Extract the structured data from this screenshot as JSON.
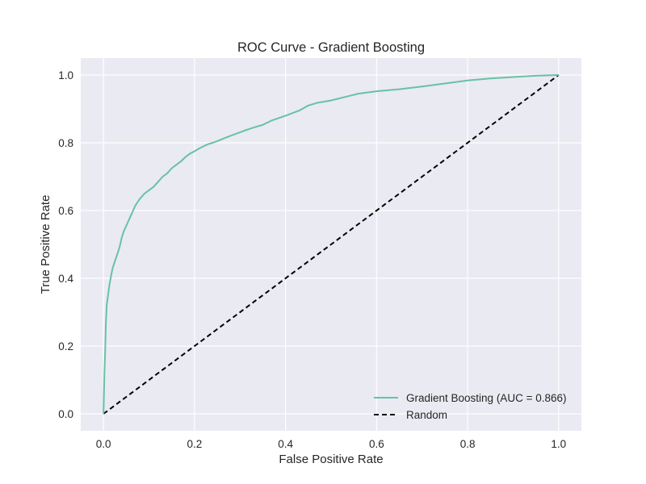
{
  "chart_data": {
    "type": "line",
    "title": "ROC Curve - Gradient Boosting",
    "xlabel": "False Positive Rate",
    "ylabel": "True Positive Rate",
    "xlim": [
      -0.05,
      1.05
    ],
    "ylim": [
      -0.05,
      1.05
    ],
    "x_ticks": [
      0.0,
      0.2,
      0.4,
      0.6,
      0.8,
      1.0
    ],
    "y_ticks": [
      0.0,
      0.2,
      0.4,
      0.6,
      0.8,
      1.0
    ],
    "x_tick_labels": [
      "0.0",
      "0.2",
      "0.4",
      "0.6",
      "0.8",
      "1.0"
    ],
    "y_tick_labels": [
      "0.0",
      "0.2",
      "0.4",
      "0.6",
      "0.8",
      "1.0"
    ],
    "grid": true,
    "legend_position": "lower-right",
    "background_color": "#eaeaf2",
    "series": [
      {
        "name": "Gradient Boosting (AUC = 0.866)",
        "color": "#66c2a5",
        "style": "solid",
        "x": [
          0.0,
          0.002,
          0.004,
          0.005,
          0.007,
          0.01,
          0.013,
          0.017,
          0.02,
          0.025,
          0.03,
          0.035,
          0.04,
          0.045,
          0.05,
          0.055,
          0.06,
          0.065,
          0.07,
          0.075,
          0.08,
          0.09,
          0.1,
          0.11,
          0.12,
          0.13,
          0.14,
          0.15,
          0.16,
          0.17,
          0.18,
          0.19,
          0.2,
          0.21,
          0.22,
          0.23,
          0.24,
          0.25,
          0.27,
          0.29,
          0.31,
          0.33,
          0.35,
          0.37,
          0.4,
          0.43,
          0.45,
          0.47,
          0.5,
          0.53,
          0.56,
          0.6,
          0.65,
          0.7,
          0.75,
          0.8,
          0.85,
          0.9,
          0.95,
          1.0
        ],
        "y": [
          0.0,
          0.12,
          0.2,
          0.26,
          0.32,
          0.35,
          0.38,
          0.41,
          0.43,
          0.45,
          0.47,
          0.49,
          0.52,
          0.54,
          0.555,
          0.57,
          0.585,
          0.6,
          0.615,
          0.625,
          0.635,
          0.65,
          0.66,
          0.67,
          0.685,
          0.7,
          0.71,
          0.725,
          0.735,
          0.745,
          0.758,
          0.768,
          0.775,
          0.783,
          0.79,
          0.796,
          0.8,
          0.805,
          0.816,
          0.826,
          0.836,
          0.845,
          0.853,
          0.866,
          0.88,
          0.895,
          0.91,
          0.918,
          0.925,
          0.935,
          0.945,
          0.952,
          0.958,
          0.966,
          0.975,
          0.984,
          0.99,
          0.994,
          0.998,
          1.0
        ]
      },
      {
        "name": "Random",
        "color": "#000000",
        "style": "dashed",
        "x": [
          0.0,
          1.0
        ],
        "y": [
          0.0,
          1.0
        ]
      }
    ]
  }
}
